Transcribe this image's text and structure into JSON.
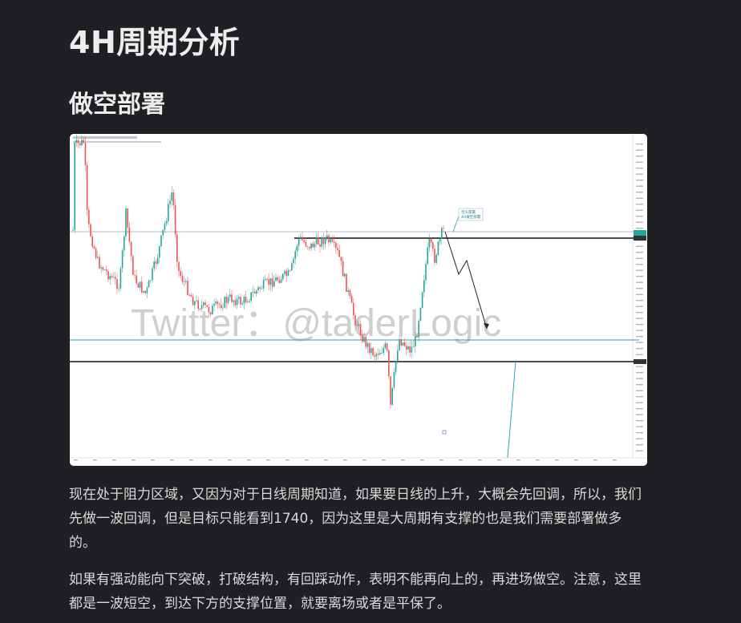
{
  "heading": "4H周期分析",
  "subheading": "做空部署",
  "chart": {
    "watermark": "Twitter：@taderLogic",
    "annotation_line1": "空头部署",
    "annotation_line2": "4H做空部署",
    "colors": {
      "up": "#26a69a",
      "down": "#ef5350",
      "resistance": "#000000",
      "support": "#1e9fb0",
      "watermark": "#c9c9c9"
    }
  },
  "paragraphs": [
    "现在处于阻力区域，又因为对于日线周期知道，如果要日线的上升，大概会先回调，所以，我们先做一波回调，但是目标只能看到1740，因为这里是大周期有支撑的也是我们需要部署做多的。",
    "如果有强动能向下突破，打破结构，有回踩动作，表明不能再向上的，再进场做空。注意，这里都是一波短空，到达下方的支撑位置，就要离场或者是平保了。"
  ]
}
